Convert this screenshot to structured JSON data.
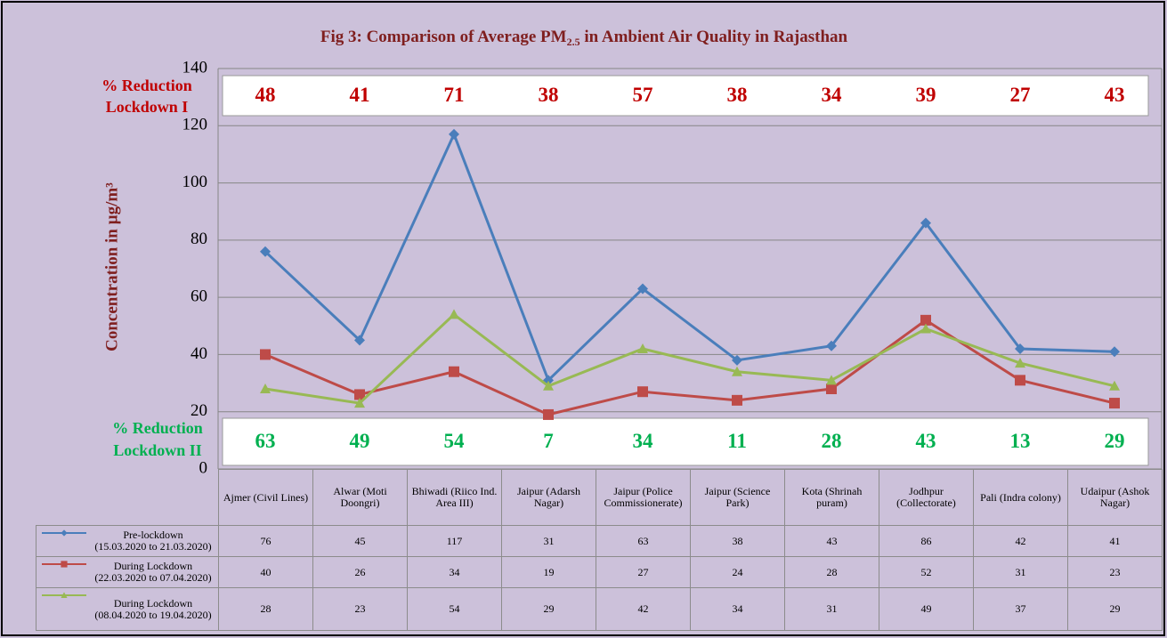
{
  "chart_data": {
    "type": "line",
    "title_parts": [
      "Fig 3: Comparison of Average PM",
      "2.5",
      " in Ambient Air Quality in Rajasthan"
    ],
    "y_label": "Concentration in µg/m³",
    "categories": [
      "Ajmer (Civil Lines)",
      "Alwar (Moti Doongri)",
      "Bhiwadi (Riico Ind. Area III)",
      "Jaipur (Adarsh Nagar)",
      "Jaipur (Police Commissionerate)",
      "Jaipur (Science Park)",
      "Kota (Shrinah puram)",
      "Jodhpur (Collectorate)",
      "Pali (Indra colony)",
      "Udaipur (Ashok Nagar)"
    ],
    "series": [
      {
        "name": "Pre-lockdown",
        "period": "(15.03.2020 to 21.03.2020)",
        "color": "#4a7ebb",
        "marker": "diamond",
        "values": [
          76,
          45,
          117,
          31,
          63,
          38,
          43,
          86,
          42,
          41
        ]
      },
      {
        "name": "During Lockdown",
        "period": "(22.03.2020 to 07.04.2020)",
        "color": "#be4b48",
        "marker": "square",
        "values": [
          40,
          26,
          34,
          19,
          27,
          24,
          28,
          52,
          31,
          23
        ]
      },
      {
        "name": "During Lockdown",
        "period": "(08.04.2020 to 19.04.2020)",
        "color": "#98b954",
        "marker": "triangle",
        "values": [
          28,
          23,
          54,
          29,
          42,
          34,
          31,
          49,
          37,
          29
        ]
      }
    ],
    "reductions": [
      {
        "label": [
          "% Reduction",
          "Lockdown I"
        ],
        "color": "#c00000",
        "values": [
          48,
          41,
          71,
          38,
          57,
          38,
          34,
          39,
          27,
          43
        ]
      },
      {
        "label": [
          "% Reduction",
          "Lockdown II"
        ],
        "color": "#00b050",
        "values": [
          63,
          49,
          54,
          7,
          34,
          11,
          28,
          43,
          13,
          29
        ]
      }
    ],
    "ylim": [
      0,
      140
    ],
    "yticks": [
      0,
      20,
      40,
      60,
      80,
      100,
      120,
      140
    ],
    "grid": true
  }
}
